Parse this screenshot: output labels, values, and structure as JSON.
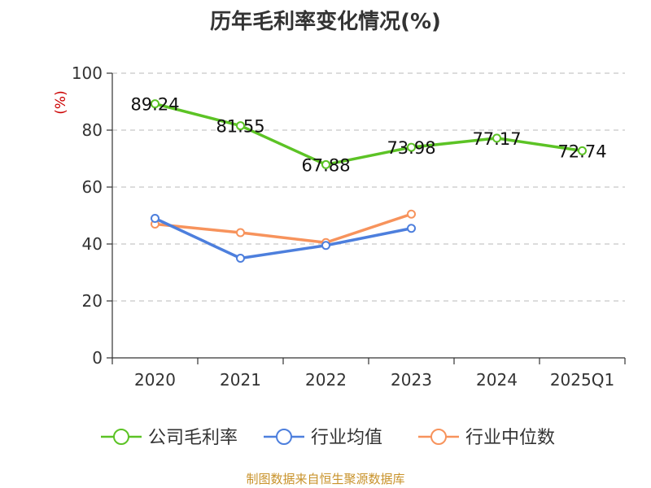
{
  "title": "历年毛利率变化情况(%)",
  "source": "制图数据来自恒生聚源数据库",
  "chart_data": {
    "type": "line",
    "title": "历年毛利率变化情况(%)",
    "ylabel": "(%)",
    "xlabel": "",
    "categories": [
      "2020",
      "2021",
      "2022",
      "2023",
      "2024",
      "2025Q1"
    ],
    "ylim": [
      0,
      100
    ],
    "yticks": [
      0,
      20,
      40,
      60,
      80,
      100
    ],
    "grid": true,
    "legend_position": "bottom",
    "series": [
      {
        "name": "公司毛利率",
        "color": "#5cc325",
        "values": [
          89.24,
          81.55,
          67.88,
          73.98,
          77.17,
          72.74
        ],
        "labels": [
          "89.24",
          "81.55",
          "67.88",
          "73.98",
          "77.17",
          "72.74"
        ]
      },
      {
        "name": "行业均值",
        "color": "#4d7fdd",
        "values": [
          49.0,
          35.0,
          39.5,
          45.5,
          null,
          null
        ]
      },
      {
        "name": "行业中位数",
        "color": "#f7935c",
        "values": [
          47.0,
          44.0,
          40.5,
          50.5,
          null,
          null
        ]
      }
    ]
  }
}
